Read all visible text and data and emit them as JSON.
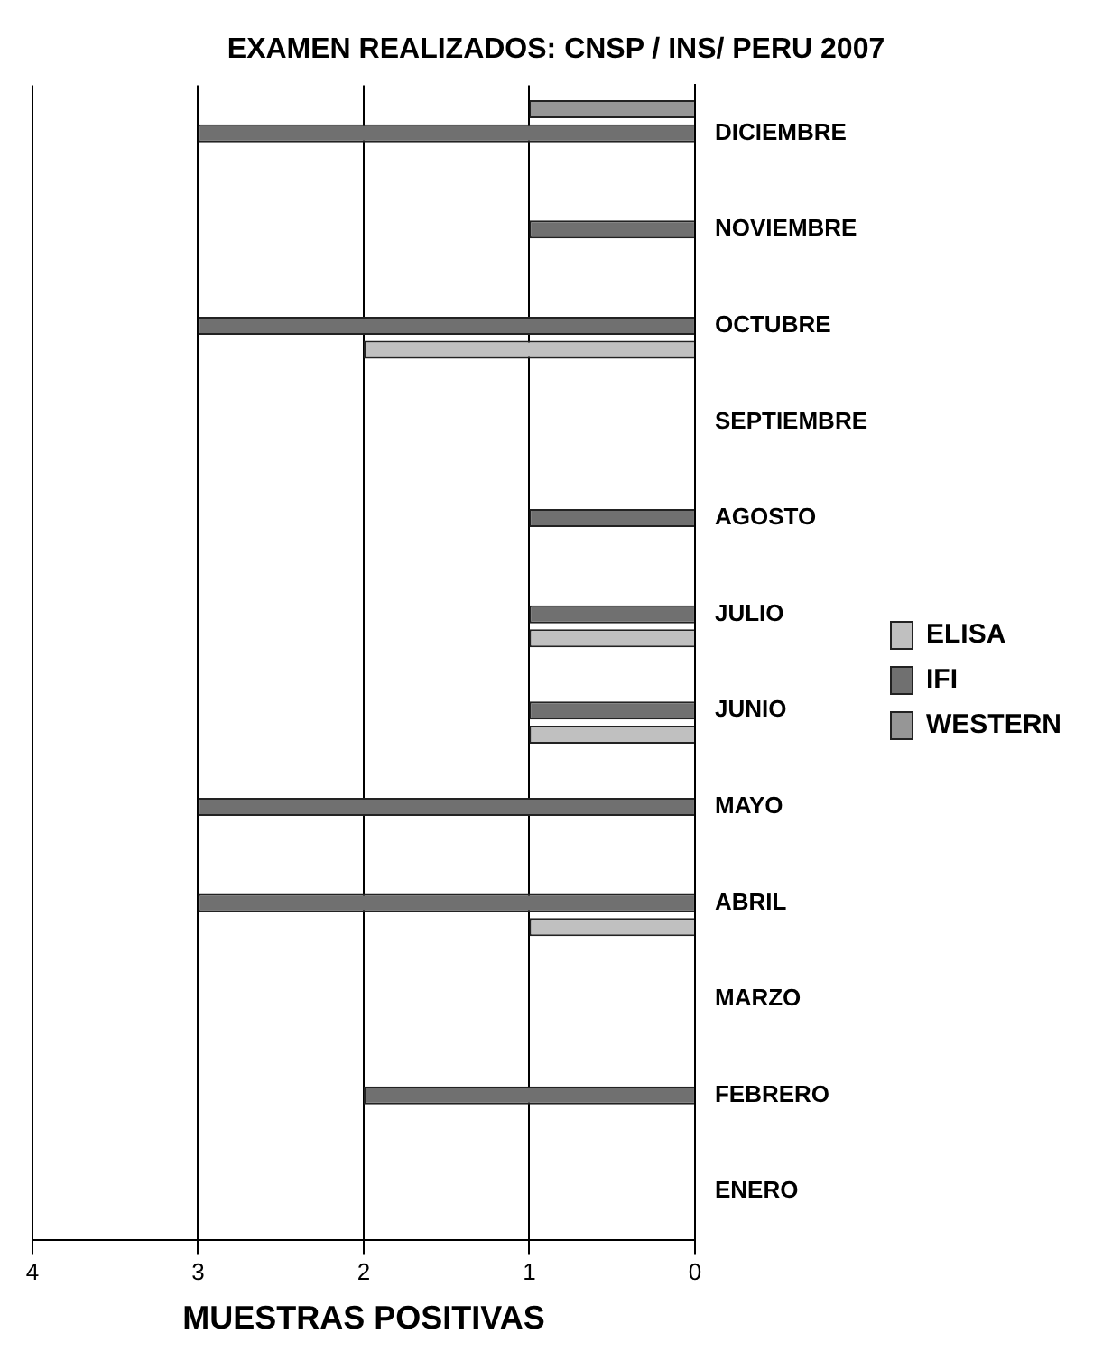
{
  "chart_data": {
    "type": "bar",
    "orientation": "horizontal",
    "title": "EXAMEN REALIZADOS: CNSP / INS/ PERU 2007",
    "xlabel": "MUESTRAS POSITIVAS",
    "categories": [
      "DICIEMBRE",
      "NOVIEMBRE",
      "OCTUBRE",
      "SEPTIEMBRE",
      "AGOSTO",
      "JULIO",
      "JUNIO",
      "MAYO",
      "ABRIL",
      "MARZO",
      "FEBRERO",
      "ENERO"
    ],
    "series": [
      {
        "name": "ELISA",
        "color": "#c0c0c0",
        "values": [
          null,
          null,
          2,
          null,
          null,
          1,
          1,
          null,
          1,
          null,
          null,
          null
        ]
      },
      {
        "name": "IFI",
        "color": "#707070",
        "values": [
          3,
          1,
          3,
          null,
          1,
          1,
          1,
          3,
          3,
          null,
          2,
          null
        ]
      },
      {
        "name": "WESTERN",
        "color": "#969696",
        "values": [
          1,
          null,
          null,
          null,
          null,
          null,
          null,
          null,
          null,
          null,
          null,
          null
        ]
      }
    ],
    "xlim": [
      4,
      0
    ],
    "xticks": [
      4,
      3,
      2,
      1,
      0
    ],
    "grid": "x",
    "legend": "right"
  }
}
